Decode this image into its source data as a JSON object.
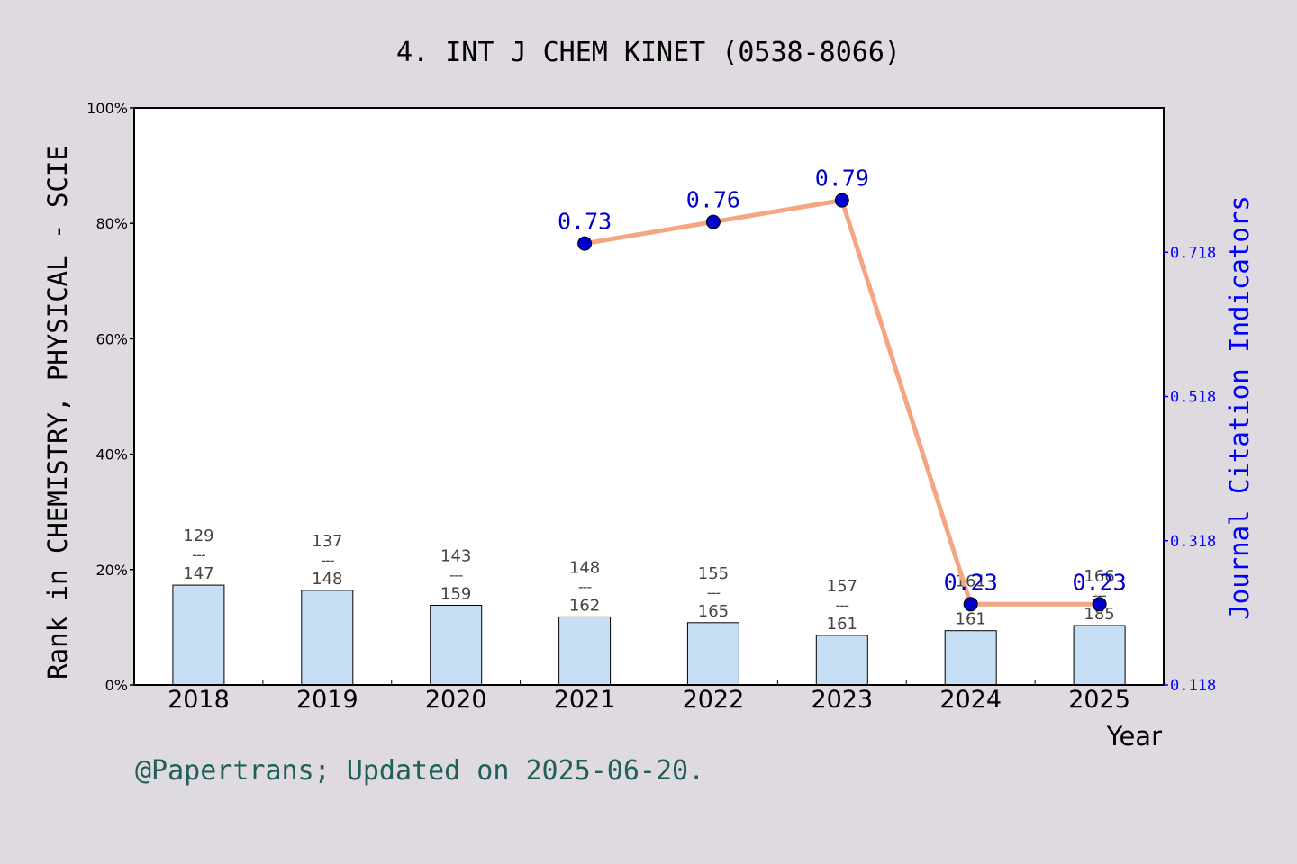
{
  "chart_data": {
    "type": "bar",
    "title": "4. INT J CHEM KINET (0538-8066)",
    "xlabel": "Year",
    "ylabel": "Rank in CHEMISTRY, PHYSICAL - SCIE",
    "y2label": "Journal Citation Indicators",
    "categories": [
      "2018",
      "2019",
      "2020",
      "2021",
      "2022",
      "2023",
      "2024",
      "2025"
    ],
    "ylim": [
      0,
      100
    ],
    "yticks": [
      "0%",
      "20%",
      "40%",
      "60%",
      "80%",
      "100%"
    ],
    "y2lim": [
      0.118,
      0.918
    ],
    "y2ticks": [
      "0.118",
      "0.318",
      "0.518",
      "0.718"
    ],
    "bars": {
      "values_percent": [
        17.3,
        16.4,
        13.8,
        11.8,
        10.8,
        8.6,
        9.4,
        10.3
      ],
      "ranks": [
        "129",
        "137",
        "143",
        "148",
        "155",
        "157",
        "161",
        "166"
      ],
      "totals": [
        "147",
        "148",
        "159",
        "162",
        "165",
        "161",
        "161",
        "185"
      ],
      "separator": "---",
      "fill": "#c6dff5",
      "stroke": "#000000"
    },
    "line": {
      "categories": [
        "2021",
        "2022",
        "2023",
        "2024",
        "2025"
      ],
      "plot_values": [
        0.73,
        0.76,
        0.79,
        0.23,
        0.23
      ],
      "labels": [
        "0.73",
        "0.76",
        "0.79",
        "0.23",
        "0.23"
      ],
      "line_color": "#f4a582",
      "marker_color": "#0000cc",
      "label_color": "#0000cc"
    },
    "grid": false
  },
  "footer": {
    "credit": "@Papertrans; Updated on 2025-06-20.",
    "color": "#1f5f5a"
  },
  "colors": {
    "background": "#dedadf",
    "plot_background": "#ffffff",
    "right_axis": "#0000ff"
  }
}
